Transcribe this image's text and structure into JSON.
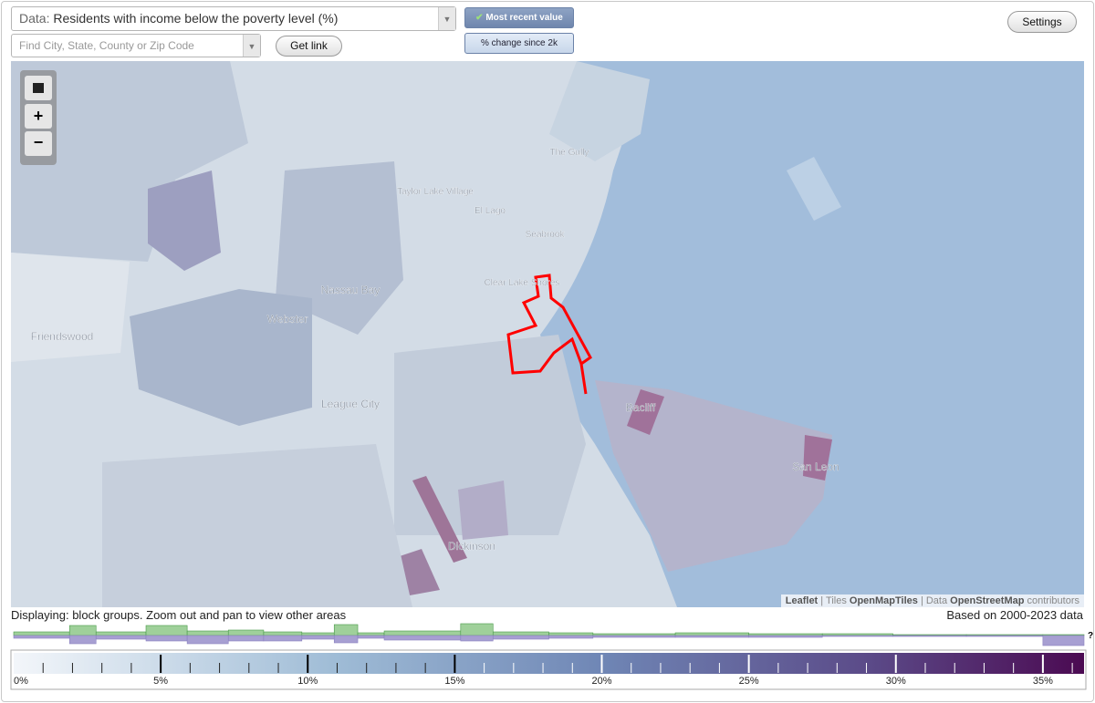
{
  "controls": {
    "data_label": "Data:",
    "data_value": "Residents with income below the poverty level (%)",
    "search_placeholder": "Find City, State, County or Zip Code",
    "get_link": "Get link",
    "most_recent": "Most recent value",
    "change": "% change since 2k",
    "settings": "Settings"
  },
  "map": {
    "labels": [
      "The Gully",
      "Taylor Lake Village",
      "El Lago",
      "Seabrook",
      "Clear Lake Shores",
      "Nassau Bay",
      "Webster",
      "Friendswood",
      "League City",
      "Bacliff",
      "San Leon",
      "Dickinson"
    ],
    "attribution": [
      "Leaflet",
      "| Tiles",
      "OpenMapTiles",
      "| Data",
      "OpenStreetMap",
      "contributors"
    ]
  },
  "status": {
    "displaying": "Displaying: block groups. Zoom out and pan to view other areas",
    "based_on": "Based on 2000-2023 data",
    "help": "?"
  },
  "chart_data": {
    "type": "histogram",
    "bins": [
      0,
      1.9,
      2.8,
      4.5,
      5.9,
      7.3,
      8.5,
      9.8,
      10.9,
      11.7,
      12.6,
      15.2,
      16.3,
      18.2,
      19.7,
      22.5,
      25,
      27.5,
      29.9,
      32.4,
      35,
      36.4
    ],
    "series": [
      {
        "color": "#9fd09a",
        "values": [
          4,
          11,
          4,
          11,
          5,
          6,
          4,
          3,
          12,
          3,
          5,
          13,
          4,
          3,
          2,
          3,
          2,
          2,
          1,
          1,
          1
        ]
      },
      {
        "color": "#a79fd2",
        "values": [
          3,
          9,
          4,
          6,
          9,
          6,
          6,
          4,
          8,
          3,
          5,
          6,
          4,
          3,
          2,
          2,
          2,
          1,
          1,
          1,
          11
        ]
      }
    ],
    "xlim": [
      0,
      36.4
    ],
    "xticks": [
      {
        "value": 0,
        "label": "0%"
      },
      {
        "value": 5,
        "label": "5%"
      },
      {
        "value": 10,
        "label": "10%"
      },
      {
        "value": 15,
        "label": "15%"
      },
      {
        "value": 20,
        "label": "20%"
      },
      {
        "value": 25,
        "label": "25%"
      },
      {
        "value": 30,
        "label": "30%"
      },
      {
        "value": 35,
        "label": "35%"
      }
    ],
    "minor_ticks": [
      1,
      2,
      3,
      4,
      6,
      7,
      8,
      9,
      11,
      12,
      13,
      14,
      16,
      17,
      18,
      19,
      21,
      22,
      23,
      24,
      26,
      27,
      28,
      29,
      31,
      32,
      33,
      34,
      36
    ]
  }
}
